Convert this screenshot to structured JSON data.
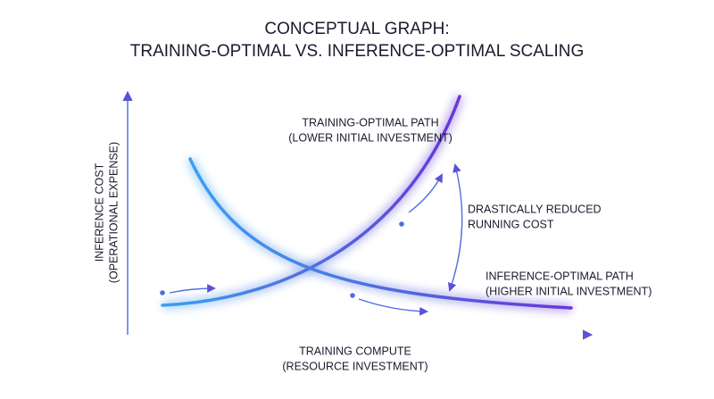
{
  "title": {
    "lines": [
      "CONCEPTUAL GRAPH:",
      "TRAINING-OPTIMAL VS. INFERENCE-OPTIMAL SCALING"
    ]
  },
  "y_axis_label": {
    "lines": [
      "INFERENCE COST",
      "(OPERATIONAL EXPENSE)"
    ]
  },
  "x_axis_label": {
    "lines": [
      "TRAINING COMPUTE",
      "(RESOURCE INVESTMENT)"
    ]
  },
  "annotations": {
    "training_path": {
      "lines": [
        "TRAINING-OPTIMAL PATH",
        "(LOWER INITIAL INVESTMENT)"
      ]
    },
    "reduced_cost": {
      "lines": [
        "DRASTICALLY REDUCED",
        "RUNNING COST"
      ]
    },
    "inference_path": {
      "lines": [
        "INFERENCE-OPTIMAL PATH",
        "(HIGHER INITIAL INVESTMENT)"
      ]
    }
  }
}
